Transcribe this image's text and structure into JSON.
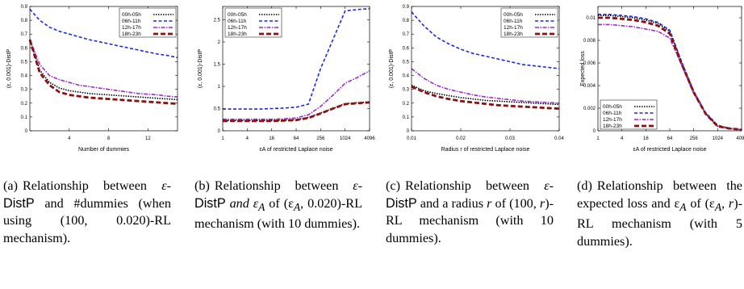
{
  "legend_labels": [
    "00h-05h",
    "06h-11h",
    "12h-17h",
    "18h-23h"
  ],
  "series_colors": [
    "#000000",
    "#1c2bd6",
    "#9a2fc7",
    "#8b1010"
  ],
  "chart_data": [
    {
      "type": "line",
      "ylabel": "(ε, 0.001)-DistP",
      "xlabel": "Number of dummies",
      "xlim": [
        0,
        15
      ],
      "ylim": [
        0,
        0.9
      ],
      "xticks": [
        4,
        8,
        12
      ],
      "yticks": [
        0,
        0.1,
        0.2,
        0.3,
        0.4,
        0.5,
        0.6,
        0.7,
        0.8,
        0.9
      ],
      "x": [
        0,
        1,
        2,
        3,
        4,
        5,
        6,
        7,
        8,
        9,
        10,
        11,
        12,
        13,
        14,
        15
      ],
      "legend": "top-right",
      "grid": false,
      "series": [
        {
          "name": "00h-05h",
          "values": [
            0.66,
            0.44,
            0.35,
            0.31,
            0.29,
            0.28,
            0.27,
            0.265,
            0.26,
            0.255,
            0.25,
            0.245,
            0.24,
            0.235,
            0.23,
            0.225
          ]
        },
        {
          "name": "06h-11h",
          "values": [
            0.88,
            0.8,
            0.75,
            0.72,
            0.7,
            0.68,
            0.66,
            0.645,
            0.63,
            0.615,
            0.6,
            0.585,
            0.57,
            0.555,
            0.545,
            0.53
          ]
        },
        {
          "name": "12h-17h",
          "values": [
            0.66,
            0.48,
            0.4,
            0.37,
            0.35,
            0.33,
            0.32,
            0.31,
            0.3,
            0.29,
            0.28,
            0.27,
            0.265,
            0.26,
            0.25,
            0.245
          ]
        },
        {
          "name": "18h-23h",
          "values": [
            0.66,
            0.42,
            0.33,
            0.28,
            0.26,
            0.25,
            0.24,
            0.235,
            0.23,
            0.225,
            0.22,
            0.215,
            0.21,
            0.205,
            0.2,
            0.195
          ]
        }
      ]
    },
    {
      "type": "line",
      "ylabel": "(ε, 0.001)-DistP",
      "xlabel": "εA of restricted Laplace noise",
      "log_x": true,
      "xlim": [
        1,
        4096
      ],
      "ylim": [
        0,
        2.8
      ],
      "xticks": [
        "1",
        "4",
        "16",
        "64",
        "256",
        "1024",
        "4096"
      ],
      "yticks": [
        0,
        0.5,
        1,
        1.5,
        2,
        2.5
      ],
      "x": [
        1,
        2,
        4,
        8,
        16,
        32,
        64,
        128,
        256,
        512,
        1024,
        2048,
        4096
      ],
      "legend": "top-left",
      "grid": false,
      "series": [
        {
          "name": "00h-05h",
          "values": [
            0.23,
            0.23,
            0.23,
            0.23,
            0.23,
            0.24,
            0.25,
            0.3,
            0.4,
            0.5,
            0.61,
            0.63,
            0.65
          ]
        },
        {
          "name": "06h-11h",
          "values": [
            0.49,
            0.49,
            0.49,
            0.49,
            0.5,
            0.51,
            0.53,
            0.6,
            1.4,
            2.05,
            2.7,
            2.73,
            2.75
          ]
        },
        {
          "name": "12h-17h",
          "values": [
            0.26,
            0.26,
            0.26,
            0.26,
            0.26,
            0.27,
            0.29,
            0.36,
            0.55,
            0.8,
            1.07,
            1.2,
            1.35
          ]
        },
        {
          "name": "18h-23h",
          "values": [
            0.22,
            0.22,
            0.22,
            0.22,
            0.22,
            0.23,
            0.24,
            0.29,
            0.39,
            0.5,
            0.6,
            0.62,
            0.64
          ]
        }
      ]
    },
    {
      "type": "line",
      "ylabel": "(ε, 0.001)-DistP",
      "xlabel": "Radius r of restricted Laplace noise",
      "xlim": [
        0.01,
        0.04
      ],
      "ylim": [
        0,
        0.9
      ],
      "xticks": [
        "0.01",
        "0.02",
        "0.03",
        "0.04"
      ],
      "yticks": [
        0,
        0.1,
        0.2,
        0.3,
        0.4,
        0.5,
        0.6,
        0.7,
        0.8,
        0.9
      ],
      "x": [
        0.01,
        0.0125,
        0.015,
        0.0175,
        0.02,
        0.0225,
        0.025,
        0.0275,
        0.03,
        0.0325,
        0.035,
        0.0375,
        0.04
      ],
      "legend": "top-right",
      "grid": false,
      "series": [
        {
          "name": "00h-05h",
          "values": [
            0.33,
            0.29,
            0.27,
            0.255,
            0.24,
            0.23,
            0.22,
            0.215,
            0.21,
            0.205,
            0.2,
            0.195,
            0.19
          ]
        },
        {
          "name": "06h-11h",
          "values": [
            0.86,
            0.76,
            0.68,
            0.63,
            0.59,
            0.56,
            0.54,
            0.52,
            0.5,
            0.48,
            0.47,
            0.46,
            0.45
          ]
        },
        {
          "name": "12h-17h",
          "values": [
            0.45,
            0.38,
            0.33,
            0.3,
            0.28,
            0.26,
            0.245,
            0.235,
            0.225,
            0.215,
            0.21,
            0.205,
            0.2
          ]
        },
        {
          "name": "18h-23h",
          "values": [
            0.32,
            0.28,
            0.25,
            0.23,
            0.215,
            0.205,
            0.195,
            0.185,
            0.18,
            0.175,
            0.17,
            0.165,
            0.16
          ]
        }
      ]
    },
    {
      "type": "line",
      "ylabel": "Expected loss",
      "xlabel": "εA of restricted Laplace noise",
      "log_x": true,
      "xlim": [
        1,
        4096
      ],
      "ylim": [
        0,
        0.011
      ],
      "xticks": [
        "1",
        "4",
        "16",
        "64",
        "256",
        "1024",
        "4096"
      ],
      "yticks": [
        0,
        0.002,
        0.004,
        0.006,
        0.008,
        0.01
      ],
      "x": [
        1,
        2,
        4,
        8,
        16,
        32,
        64,
        128,
        256,
        512,
        1024,
        2048,
        4096
      ],
      "legend": "bottom-left",
      "grid": false,
      "series": [
        {
          "name": "00h-05h",
          "values": [
            0.0102,
            0.0102,
            0.0101,
            0.01,
            0.0098,
            0.0095,
            0.0088,
            0.006,
            0.0035,
            0.0015,
            0.0004,
            0.0002,
            0.0001
          ]
        },
        {
          "name": "06h-11h",
          "values": [
            0.0103,
            0.0103,
            0.0102,
            0.0101,
            0.0099,
            0.0096,
            0.0089,
            0.0061,
            0.0035,
            0.0016,
            0.0005,
            0.0002,
            0.0001
          ]
        },
        {
          "name": "12h-17h",
          "values": [
            0.0094,
            0.0094,
            0.0093,
            0.0092,
            0.009,
            0.0088,
            0.0082,
            0.0058,
            0.0033,
            0.0015,
            0.0004,
            0.0002,
            0.0001
          ]
        },
        {
          "name": "18h-23h",
          "values": [
            0.01,
            0.01,
            0.0099,
            0.0098,
            0.0096,
            0.0093,
            0.0086,
            0.0059,
            0.0034,
            0.0015,
            0.0004,
            0.0002,
            0.0001
          ]
        }
      ]
    }
  ],
  "captions": [
    {
      "tag": "(a)",
      "pre": "Relationship between ",
      "eps": "ε",
      "mid": "-",
      "distp": "DistP",
      "post": " and #dummies (when using (100, 0.020)-RL mechanism)."
    },
    {
      "tag": "(b)",
      "pre": "Relationship between ",
      "eps": "ε",
      "mid": "-",
      "distp": "DistP",
      "post": " and ε",
      "sub": "A",
      "post2": " of (ε",
      "sub2": "A",
      "post3": ", 0.020)-RL mechanism (with 10 dummies)."
    },
    {
      "tag": "(c)",
      "pre": "Relationship between ",
      "eps": "ε",
      "mid": "-",
      "distp": "DistP",
      "post": " and a radius ",
      "r": "r",
      "post2": " of (100, ",
      "r2": "r",
      "post3": ")-RL mechanism (with 10 dummies)."
    },
    {
      "tag": "(d)",
      "pre": "Relationship between the expected loss and ε",
      "sub": "A",
      "mid": " of (ε",
      "sub2": "A",
      "post": ", ",
      "r": "r",
      "post2": ")-RL mechanism (with 5 dummies)."
    }
  ]
}
